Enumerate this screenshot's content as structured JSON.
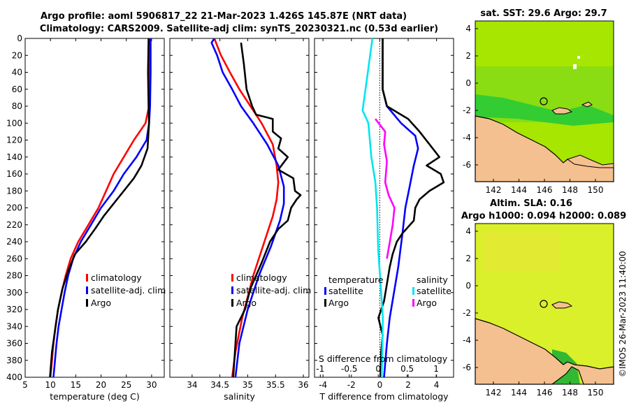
{
  "titles": {
    "line1": "Argo profile: aoml 5906817_22 21-Mar-2023 1.426S 145.87E (NRT data)",
    "line2": "Climatology: CARS2009. Satellite-adj clim: synTS_20230321.nc (0.53d earlier)"
  },
  "side_label": "©IMOS 26-Mar-2023 11:40:00",
  "colors": {
    "climatology": "#ff0000",
    "satellite": "#0000ff",
    "argo": "#000000",
    "salinity_sat": "#00e5ee",
    "salinity_argo": "#ff00ff",
    "ocean_warm": "#a6e600",
    "ocean_green": "#33cc33",
    "land": "#f5c08f",
    "sla_ocean": "#d9f02a"
  },
  "chart_data": [
    {
      "type": "line",
      "id": "temperature",
      "xlabel": "temperature (deg C)",
      "ylabel": "",
      "xlim": [
        5,
        32.5
      ],
      "ylim": [
        400,
        0
      ],
      "xticks": [
        5,
        10,
        15,
        20,
        25,
        30
      ],
      "yticks": [
        0,
        20,
        40,
        60,
        80,
        100,
        120,
        140,
        160,
        180,
        200,
        220,
        240,
        260,
        280,
        300,
        320,
        340,
        360,
        380,
        400
      ],
      "legend": [
        "climatology",
        "satellite-adj. clim",
        "Argo"
      ],
      "series": [
        {
          "name": "climatology",
          "color": "#ff0000",
          "points": [
            [
              29.6,
              0
            ],
            [
              29.6,
              40
            ],
            [
              29.5,
              80
            ],
            [
              28.8,
              100
            ],
            [
              26.5,
              120
            ],
            [
              24.5,
              140
            ],
            [
              22.5,
              160
            ],
            [
              21,
              180
            ],
            [
              19.5,
              200
            ],
            [
              17.5,
              220
            ],
            [
              15.5,
              240
            ],
            [
              14,
              260
            ],
            [
              13,
              280
            ],
            [
              12.2,
              300
            ],
            [
              11.5,
              320
            ],
            [
              11,
              340
            ],
            [
              10.6,
              360
            ],
            [
              10.3,
              380
            ],
            [
              10,
              400
            ]
          ]
        },
        {
          "name": "satellite-adj. clim",
          "color": "#0000ff",
          "points": [
            [
              29.8,
              0
            ],
            [
              29.8,
              40
            ],
            [
              29.7,
              80
            ],
            [
              29.5,
              100
            ],
            [
              29,
              120
            ],
            [
              27,
              140
            ],
            [
              24.5,
              160
            ],
            [
              22.5,
              180
            ],
            [
              20,
              200
            ],
            [
              18,
              220
            ],
            [
              16,
              240
            ],
            [
              14.5,
              260
            ],
            [
              13.5,
              280
            ],
            [
              12.8,
              300
            ],
            [
              12.2,
              320
            ],
            [
              11.6,
              340
            ],
            [
              11.2,
              360
            ],
            [
              10.9,
              380
            ],
            [
              10.6,
              400
            ]
          ]
        },
        {
          "name": "Argo",
          "color": "#000000",
          "points": [
            [
              29.4,
              0
            ],
            [
              29.3,
              40
            ],
            [
              29.4,
              80
            ],
            [
              29.5,
              100
            ],
            [
              29.2,
              130
            ],
            [
              28,
              150
            ],
            [
              26.5,
              165
            ],
            [
              24.5,
              180
            ],
            [
              22.5,
              195
            ],
            [
              20.5,
              210
            ],
            [
              18.8,
              225
            ],
            [
              17,
              240
            ],
            [
              14.8,
              255
            ],
            [
              13.5,
              275
            ],
            [
              12.4,
              295
            ],
            [
              11.5,
              320
            ],
            [
              10.9,
              345
            ],
            [
              10.3,
              370
            ],
            [
              9.9,
              400
            ]
          ]
        }
      ]
    },
    {
      "type": "line",
      "id": "salinity",
      "xlabel": "salinity",
      "xlim": [
        33.6,
        36.1
      ],
      "ylim": [
        400,
        0
      ],
      "xticks": [
        34,
        34.5,
        35,
        35.5,
        36
      ],
      "legend": [
        "climatology",
        "satellite-adj. clim",
        "Argo"
      ],
      "series": [
        {
          "name": "climatology",
          "color": "#ff0000",
          "points": [
            [
              34.4,
              0
            ],
            [
              34.52,
              20
            ],
            [
              34.68,
              40
            ],
            [
              34.85,
              60
            ],
            [
              35.05,
              80
            ],
            [
              35.25,
              100
            ],
            [
              35.45,
              125
            ],
            [
              35.52,
              150
            ],
            [
              35.55,
              170
            ],
            [
              35.52,
              190
            ],
            [
              35.45,
              210
            ],
            [
              35.3,
              240
            ],
            [
              35.1,
              280
            ],
            [
              34.9,
              330
            ],
            [
              34.78,
              370
            ],
            [
              34.72,
              400
            ]
          ]
        },
        {
          "name": "satellite-adj. clim",
          "color": "#0000ff",
          "points": [
            [
              34.4,
              0
            ],
            [
              34.35,
              5
            ],
            [
              34.45,
              20
            ],
            [
              34.55,
              40
            ],
            [
              34.72,
              60
            ],
            [
              34.88,
              80
            ],
            [
              35.1,
              100
            ],
            [
              35.35,
              125
            ],
            [
              35.55,
              150
            ],
            [
              35.65,
              175
            ],
            [
              35.65,
              195
            ],
            [
              35.58,
              215
            ],
            [
              35.42,
              245
            ],
            [
              35.2,
              280
            ],
            [
              35,
              320
            ],
            [
              34.85,
              360
            ],
            [
              34.78,
              400
            ]
          ]
        },
        {
          "name": "Argo",
          "color": "#000000",
          "points": [
            [
              34.88,
              5
            ],
            [
              34.93,
              30
            ],
            [
              34.98,
              60
            ],
            [
              35.08,
              80
            ],
            [
              35.15,
              90
            ],
            [
              35.45,
              95
            ],
            [
              35.45,
              110
            ],
            [
              35.6,
              118
            ],
            [
              35.55,
              130
            ],
            [
              35.72,
              140
            ],
            [
              35.55,
              155
            ],
            [
              35.82,
              165
            ],
            [
              35.85,
              180
            ],
            [
              35.95,
              185
            ],
            [
              35.88,
              190
            ],
            [
              35.78,
              200
            ],
            [
              35.72,
              215
            ],
            [
              35.55,
              225
            ],
            [
              35.4,
              240
            ],
            [
              35.25,
              265
            ],
            [
              35.05,
              295
            ],
            [
              34.95,
              320
            ],
            [
              34.8,
              340
            ],
            [
              34.77,
              370
            ],
            [
              34.74,
              400
            ]
          ]
        }
      ]
    },
    {
      "type": "line",
      "id": "difference",
      "xlabel": "T difference from climatology",
      "top_xlabel": "S difference from climatology",
      "xlim": [
        -4.6,
        5.2
      ],
      "top_xlim": [
        -1.1,
        1.3
      ],
      "ylim": [
        400,
        0
      ],
      "xticks": [
        -4,
        -2,
        0,
        2,
        4
      ],
      "top_xticks": [
        -1,
        -0.5,
        0,
        0.5,
        1
      ],
      "top_xtick_labels": [
        "-1",
        "-0.5",
        "0",
        "0.5",
        "1"
      ],
      "legend_temperature_title": "temperature",
      "legend_salinity_title": "salinity",
      "legend_temperature": [
        "satellite",
        "Argo"
      ],
      "legend_salinity": [
        "satellite",
        "Argo"
      ],
      "series": [
        {
          "name": "temperature satellite",
          "axis": "T",
          "color": "#0000ff",
          "points": [
            [
              0.2,
              0
            ],
            [
              0.2,
              60
            ],
            [
              0.5,
              80
            ],
            [
              1.5,
              100
            ],
            [
              2.5,
              115
            ],
            [
              2.7,
              130
            ],
            [
              2.4,
              150
            ],
            [
              2.1,
              175
            ],
            [
              1.8,
              200
            ],
            [
              1.6,
              230
            ],
            [
              1.3,
              270
            ],
            [
              1,
              300
            ],
            [
              0.7,
              330
            ],
            [
              0.5,
              360
            ],
            [
              0.3,
              400
            ]
          ]
        },
        {
          "name": "temperature Argo",
          "axis": "T",
          "color": "#000000",
          "points": [
            [
              0.2,
              0
            ],
            [
              0.2,
              60
            ],
            [
              0.5,
              80
            ],
            [
              2,
              95
            ],
            [
              2.8,
              110
            ],
            [
              3.5,
              125
            ],
            [
              4.2,
              140
            ],
            [
              3.3,
              150
            ],
            [
              4.3,
              160
            ],
            [
              4.5,
              170
            ],
            [
              3.5,
              180
            ],
            [
              2.8,
              190
            ],
            [
              2.5,
              200
            ],
            [
              2.4,
              215
            ],
            [
              1.6,
              230
            ],
            [
              1.2,
              240
            ],
            [
              0.9,
              255
            ],
            [
              0.7,
              270
            ],
            [
              0.5,
              290
            ],
            [
              0.3,
              310
            ],
            [
              -0.1,
              330
            ],
            [
              0.2,
              350
            ],
            [
              0.1,
              370
            ],
            [
              0.05,
              400
            ]
          ]
        },
        {
          "name": "salinity satellite",
          "axis": "S",
          "color": "#00e5ee",
          "points": [
            [
              -0.1,
              0
            ],
            [
              -0.18,
              40
            ],
            [
              -0.27,
              85
            ],
            [
              -0.17,
              100
            ],
            [
              -0.12,
              140
            ],
            [
              -0.05,
              170
            ],
            [
              -0.02,
              200
            ],
            [
              0,
              250
            ],
            [
              0.05,
              300
            ],
            [
              0.08,
              330
            ],
            [
              0.06,
              400
            ]
          ]
        },
        {
          "name": "salinity Argo",
          "axis": "S",
          "color": "#ff00ff",
          "points": [
            [
              -0.05,
              95
            ],
            [
              0.12,
              110
            ],
            [
              0.1,
              125
            ],
            [
              0.15,
              145
            ],
            [
              0.12,
              170
            ],
            [
              0.18,
              185
            ],
            [
              0.28,
              200
            ],
            [
              0.25,
              220
            ],
            [
              0.2,
              240
            ],
            [
              0.15,
              260
            ]
          ]
        }
      ]
    }
  ],
  "maps": {
    "sst": {
      "title": "sat. SST: 29.6 Argo: 29.7",
      "xticks": [
        "142",
        "144",
        "146",
        "148",
        "150"
      ],
      "yticks": [
        "4",
        "2",
        "0",
        "-2",
        "-4",
        "-6"
      ]
    },
    "sla": {
      "title1": "Altim. SLA: 0.16",
      "title2": "Argo h1000: 0.094 h2000: 0.089",
      "xticks": [
        "142",
        "144",
        "146",
        "148",
        "150"
      ],
      "yticks": [
        "4",
        "2",
        "0",
        "-2",
        "-4",
        "-6"
      ]
    }
  }
}
